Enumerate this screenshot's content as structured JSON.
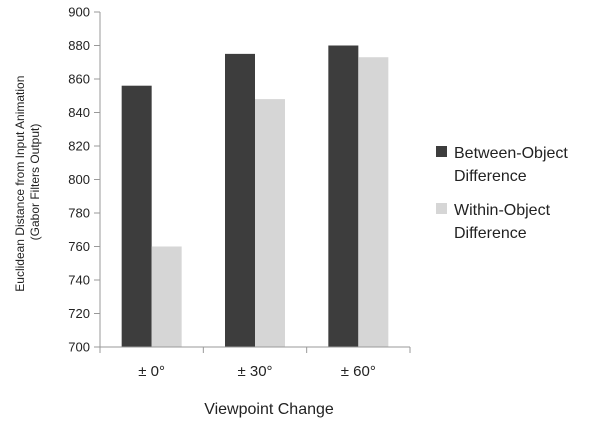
{
  "chart_data": {
    "type": "bar",
    "title": "",
    "categories": [
      "± 0°",
      "± 30°",
      "± 60°"
    ],
    "series": [
      {
        "name": "Between-Object Difference",
        "values": [
          856,
          875,
          880
        ],
        "color": "#3d3d3d",
        "legend_lines": [
          "Between-Object",
          "Difference"
        ]
      },
      {
        "name": "Within-Object Difference",
        "values": [
          760,
          848,
          873
        ],
        "color": "#d6d6d6",
        "legend_lines": [
          "Within-Object",
          "Difference"
        ]
      }
    ],
    "xlabel": "Viewpoint Change",
    "ylabel_lines": [
      "Euclidean Distance from Input Animation",
      "(Gabor Filters Output)"
    ],
    "ylim": [
      700,
      900
    ],
    "yticks": [
      700,
      720,
      740,
      760,
      780,
      800,
      820,
      840,
      860,
      880,
      900
    ],
    "grid": false,
    "legend_position": "right"
  }
}
